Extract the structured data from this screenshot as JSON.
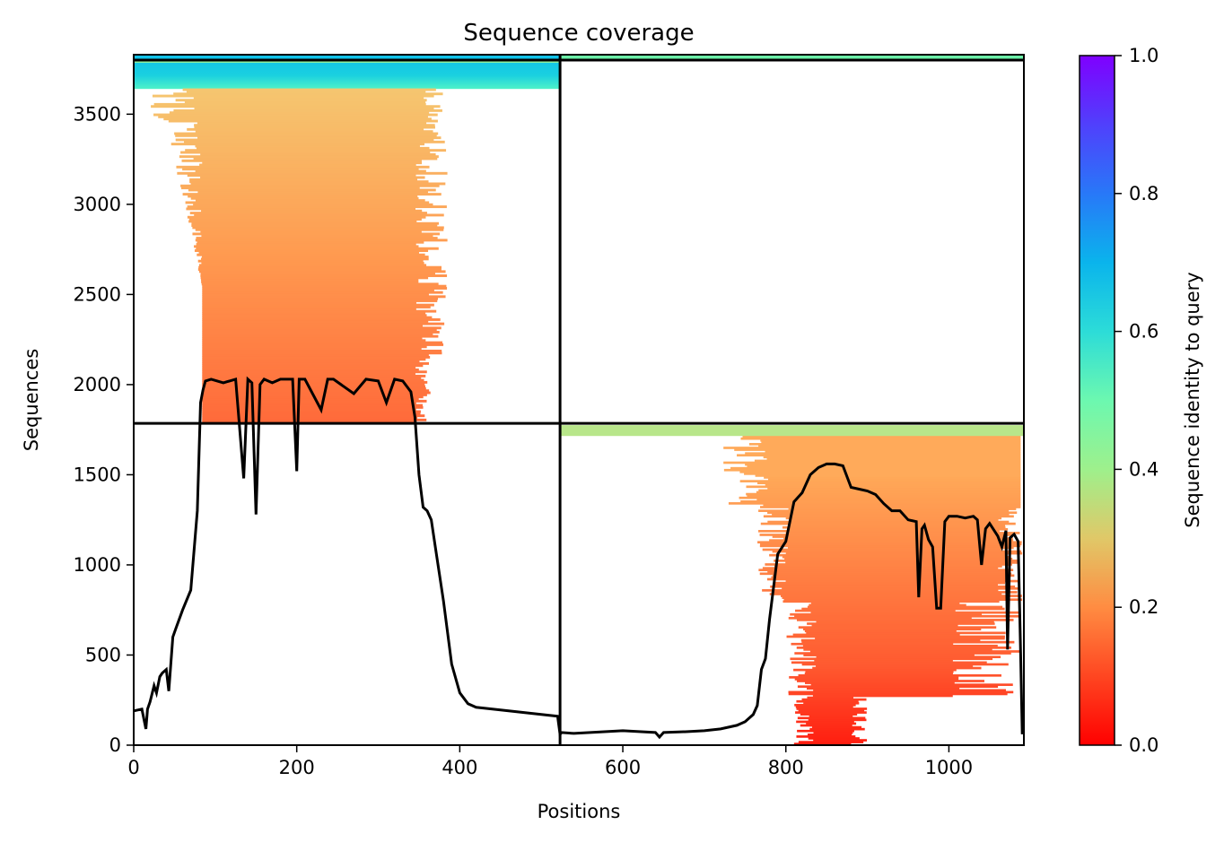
{
  "chart_data": {
    "type": "heatmap",
    "title": "Sequence coverage",
    "xlabel": "Positions",
    "ylabel": "Sequences",
    "xlim": [
      0,
      1092
    ],
    "ylim": [
      0,
      3830
    ],
    "xticks": [
      0,
      200,
      400,
      600,
      800,
      1000
    ],
    "yticks": [
      0,
      500,
      1000,
      1500,
      2000,
      2500,
      3000,
      3500
    ],
    "colorbar": {
      "label": "Sequence identity to query",
      "range": [
        0.0,
        1.0
      ],
      "ticks": [
        "0.0",
        "0.2",
        "0.4",
        "0.6",
        "0.8",
        "1.0"
      ],
      "colormap": "rainbow_r"
    },
    "segment_boundaries": {
      "x": [
        523
      ],
      "y": [
        1785,
        3800
      ]
    },
    "coverage_line": {
      "name": "",
      "x": [
        0,
        10,
        15,
        17,
        20,
        25,
        28,
        32,
        35,
        40,
        43,
        48,
        52,
        60,
        70,
        78,
        82,
        85,
        88,
        95,
        110,
        125,
        135,
        140,
        145,
        150,
        155,
        160,
        170,
        180,
        195,
        200,
        203,
        210,
        230,
        238,
        245,
        270,
        285,
        300,
        310,
        320,
        330,
        340,
        345,
        350,
        355,
        360,
        365,
        370,
        380,
        390,
        400,
        410,
        420,
        440,
        460,
        480,
        500,
        520,
        523,
        525,
        540,
        560,
        580,
        600,
        620,
        640,
        645,
        650,
        680,
        700,
        720,
        740,
        750,
        760,
        765,
        770,
        775,
        780,
        790,
        800,
        810,
        820,
        830,
        840,
        850,
        860,
        870,
        880,
        890,
        900,
        910,
        920,
        930,
        940,
        950,
        960,
        963,
        967,
        970,
        975,
        980,
        985,
        990,
        995,
        1000,
        1010,
        1020,
        1030,
        1035,
        1040,
        1045,
        1050,
        1060,
        1065,
        1070,
        1072,
        1075,
        1080,
        1085,
        1088,
        1090
      ],
      "y": [
        190,
        200,
        90,
        200,
        240,
        330,
        290,
        380,
        400,
        420,
        300,
        600,
        650,
        750,
        860,
        1300,
        1900,
        1970,
        2020,
        2030,
        2010,
        2030,
        1480,
        2030,
        2010,
        1280,
        2000,
        2030,
        2010,
        2030,
        2030,
        1520,
        2030,
        2030,
        1860,
        2030,
        2030,
        1950,
        2030,
        2020,
        1900,
        2030,
        2020,
        1960,
        1820,
        1500,
        1320,
        1300,
        1250,
        1100,
        800,
        450,
        290,
        230,
        210,
        200,
        190,
        180,
        170,
        160,
        60,
        70,
        65,
        70,
        75,
        80,
        75,
        70,
        45,
        70,
        75,
        80,
        90,
        110,
        130,
        170,
        220,
        420,
        480,
        700,
        1060,
        1130,
        1350,
        1400,
        1500,
        1540,
        1560,
        1560,
        1550,
        1430,
        1420,
        1410,
        1390,
        1340,
        1300,
        1300,
        1250,
        1240,
        820,
        1200,
        1220,
        1140,
        1100,
        760,
        760,
        1240,
        1270,
        1270,
        1260,
        1270,
        1250,
        1000,
        1200,
        1230,
        1160,
        1100,
        1190,
        530,
        1150,
        1170,
        1130,
        500,
        60
      ]
    }
  }
}
